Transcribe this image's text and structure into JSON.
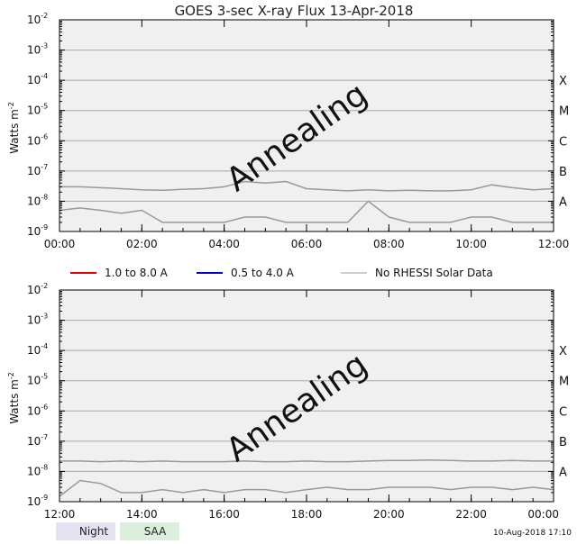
{
  "title": "GOES 3-sec X-ray Flux   13-Apr-2018",
  "colors": {
    "long": "#e00000",
    "short": "#0000cc",
    "no_data": "#999999",
    "plot_bg": "#f0f0f0",
    "grid": "#a8a8a8",
    "night": "#e4e4f2",
    "saa": "#dcefdc"
  },
  "legend": {
    "long": "1.0 to 8.0 A",
    "short": "0.5 to 4.0 A",
    "no_data": "No RHESSI Solar Data"
  },
  "footer": {
    "night": "Night",
    "saa": "SAA",
    "timestamp": "10-Aug-2018 17:10"
  },
  "chart_data": [
    {
      "type": "line",
      "title": "GOES 3-sec X-ray Flux   13-Apr-2018",
      "ylabel": "Watts m",
      "ylabel_sup": "-2",
      "yscale": "log",
      "ylim": [
        1e-09,
        0.01
      ],
      "y_ticks": [
        {
          "base": "10",
          "exp": "-2"
        },
        {
          "base": "10",
          "exp": "-3"
        },
        {
          "base": "10",
          "exp": "-4"
        },
        {
          "base": "10",
          "exp": "-5"
        },
        {
          "base": "10",
          "exp": "-6"
        },
        {
          "base": "10",
          "exp": "-7"
        },
        {
          "base": "10",
          "exp": "-8"
        },
        {
          "base": "10",
          "exp": "-9"
        }
      ],
      "x_ticks": [
        "00:00",
        "02:00",
        "04:00",
        "06:00",
        "08:00",
        "10:00",
        "12:00"
      ],
      "x_range_hours": [
        0,
        12
      ],
      "flare_classes": [
        "X",
        "M",
        "C",
        "B",
        "A"
      ],
      "annotation": "Annealing",
      "grid": true,
      "series": [
        {
          "key": "long",
          "x_hours": [
            0,
            0.5,
            1,
            1.5,
            2,
            2.5,
            3,
            3.5,
            4,
            4.5,
            5,
            5.5,
            6,
            6.5,
            7,
            7.5,
            8,
            8.5,
            9,
            9.5,
            10,
            10.5,
            11,
            11.5,
            12
          ],
          "y": [
            3e-08,
            3e-08,
            2.8e-08,
            2.6e-08,
            2.4e-08,
            2.3e-08,
            2.5e-08,
            2.6e-08,
            3e-08,
            4.5e-08,
            4e-08,
            4.5e-08,
            2.6e-08,
            2.4e-08,
            2.2e-08,
            2.4e-08,
            2.2e-08,
            2.3e-08,
            2.2e-08,
            2.2e-08,
            2.4e-08,
            3.5e-08,
            2.8e-08,
            2.4e-08,
            2.6e-08
          ]
        },
        {
          "key": "short",
          "x_hours": [
            0,
            0.5,
            1,
            1.5,
            2,
            2.5,
            3,
            3.5,
            4,
            4.5,
            5,
            5.5,
            6,
            6.5,
            7,
            7.5,
            8,
            8.5,
            9,
            9.5,
            10,
            10.5,
            11,
            11.5,
            12
          ],
          "y": [
            5e-09,
            6e-09,
            5e-09,
            4e-09,
            5e-09,
            2e-09,
            2e-09,
            2e-09,
            2e-09,
            3e-09,
            3e-09,
            2e-09,
            2e-09,
            2e-09,
            2e-09,
            1e-08,
            3e-09,
            2e-09,
            2e-09,
            2e-09,
            3e-09,
            3e-09,
            2e-09,
            2e-09,
            2e-09
          ]
        }
      ]
    },
    {
      "type": "line",
      "ylabel": "Watts m",
      "ylabel_sup": "-2",
      "yscale": "log",
      "ylim": [
        1e-09,
        0.01
      ],
      "y_ticks": [
        {
          "base": "10",
          "exp": "-2"
        },
        {
          "base": "10",
          "exp": "-3"
        },
        {
          "base": "10",
          "exp": "-4"
        },
        {
          "base": "10",
          "exp": "-5"
        },
        {
          "base": "10",
          "exp": "-6"
        },
        {
          "base": "10",
          "exp": "-7"
        },
        {
          "base": "10",
          "exp": "-8"
        },
        {
          "base": "10",
          "exp": "-9"
        }
      ],
      "x_ticks": [
        "12:00",
        "14:00",
        "16:00",
        "18:00",
        "20:00",
        "22:00",
        "00:00"
      ],
      "x_range_hours": [
        12,
        24
      ],
      "flare_classes": [
        "X",
        "M",
        "C",
        "B",
        "A"
      ],
      "annotation": "Annealing",
      "grid": true,
      "series": [
        {
          "key": "long",
          "x_hours": [
            12,
            12.5,
            13,
            13.5,
            14,
            14.5,
            15,
            15.5,
            16,
            16.5,
            17,
            17.5,
            18,
            18.5,
            19,
            19.5,
            20,
            20.5,
            21,
            21.5,
            22,
            22.5,
            23,
            23.5,
            24
          ],
          "y": [
            2.2e-08,
            2.2e-08,
            2.1e-08,
            2.2e-08,
            2.1e-08,
            2.2e-08,
            2.1e-08,
            2.1e-08,
            2.1e-08,
            2.2e-08,
            2.1e-08,
            2.1e-08,
            2.2e-08,
            2.1e-08,
            2.1e-08,
            2.2e-08,
            2.3e-08,
            2.3e-08,
            2.4e-08,
            2.3e-08,
            2.2e-08,
            2.2e-08,
            2.3e-08,
            2.2e-08,
            2.2e-08
          ]
        },
        {
          "key": "short",
          "x_hours": [
            12,
            12.5,
            13,
            13.5,
            14,
            14.5,
            15,
            15.5,
            16,
            16.5,
            17,
            17.5,
            18,
            18.5,
            19,
            19.5,
            20,
            20.5,
            21,
            21.5,
            22,
            22.5,
            23,
            23.5,
            24
          ],
          "y": [
            1.5e-09,
            5e-09,
            4e-09,
            2e-09,
            2e-09,
            2.5e-09,
            2e-09,
            2.5e-09,
            2e-09,
            2.5e-09,
            2.5e-09,
            2e-09,
            2.5e-09,
            3e-09,
            2.5e-09,
            2.5e-09,
            3e-09,
            3e-09,
            3e-09,
            2.5e-09,
            3e-09,
            3e-09,
            2.5e-09,
            3e-09,
            2.5e-09
          ]
        }
      ]
    }
  ]
}
